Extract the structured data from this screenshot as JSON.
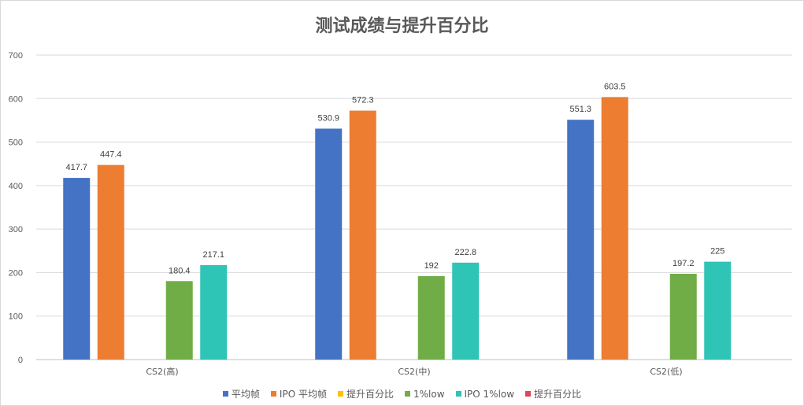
{
  "chart_data": {
    "type": "bar",
    "title": "测试成绩与提升百分比",
    "categories": [
      "CS2(高)",
      "CS2(中)",
      "CS2(低)"
    ],
    "ylim": [
      0,
      700
    ],
    "yticks": [
      0,
      100,
      200,
      300,
      400,
      500,
      600,
      700
    ],
    "grid": true,
    "legend_position": "bottom",
    "series": [
      {
        "name": "平均帧",
        "color": "#4472c4",
        "values": [
          417.7,
          530.9,
          551.3
        ]
      },
      {
        "name": "IPO 平均帧",
        "color": "#ed7d31",
        "values": [
          447.4,
          572.3,
          603.5
        ]
      },
      {
        "name": "提升百分比",
        "color": "#ffc000",
        "values": [
          null,
          null,
          null
        ]
      },
      {
        "name": "1%low",
        "color": "#70ad47",
        "values": [
          180.4,
          192,
          197.2
        ]
      },
      {
        "name": "IPO 1%low",
        "color": "#2ec4b6",
        "values": [
          217.1,
          222.8,
          225
        ]
      },
      {
        "name": "提升百分比",
        "color": "#e0455a",
        "values": [
          null,
          null,
          null
        ]
      }
    ]
  }
}
